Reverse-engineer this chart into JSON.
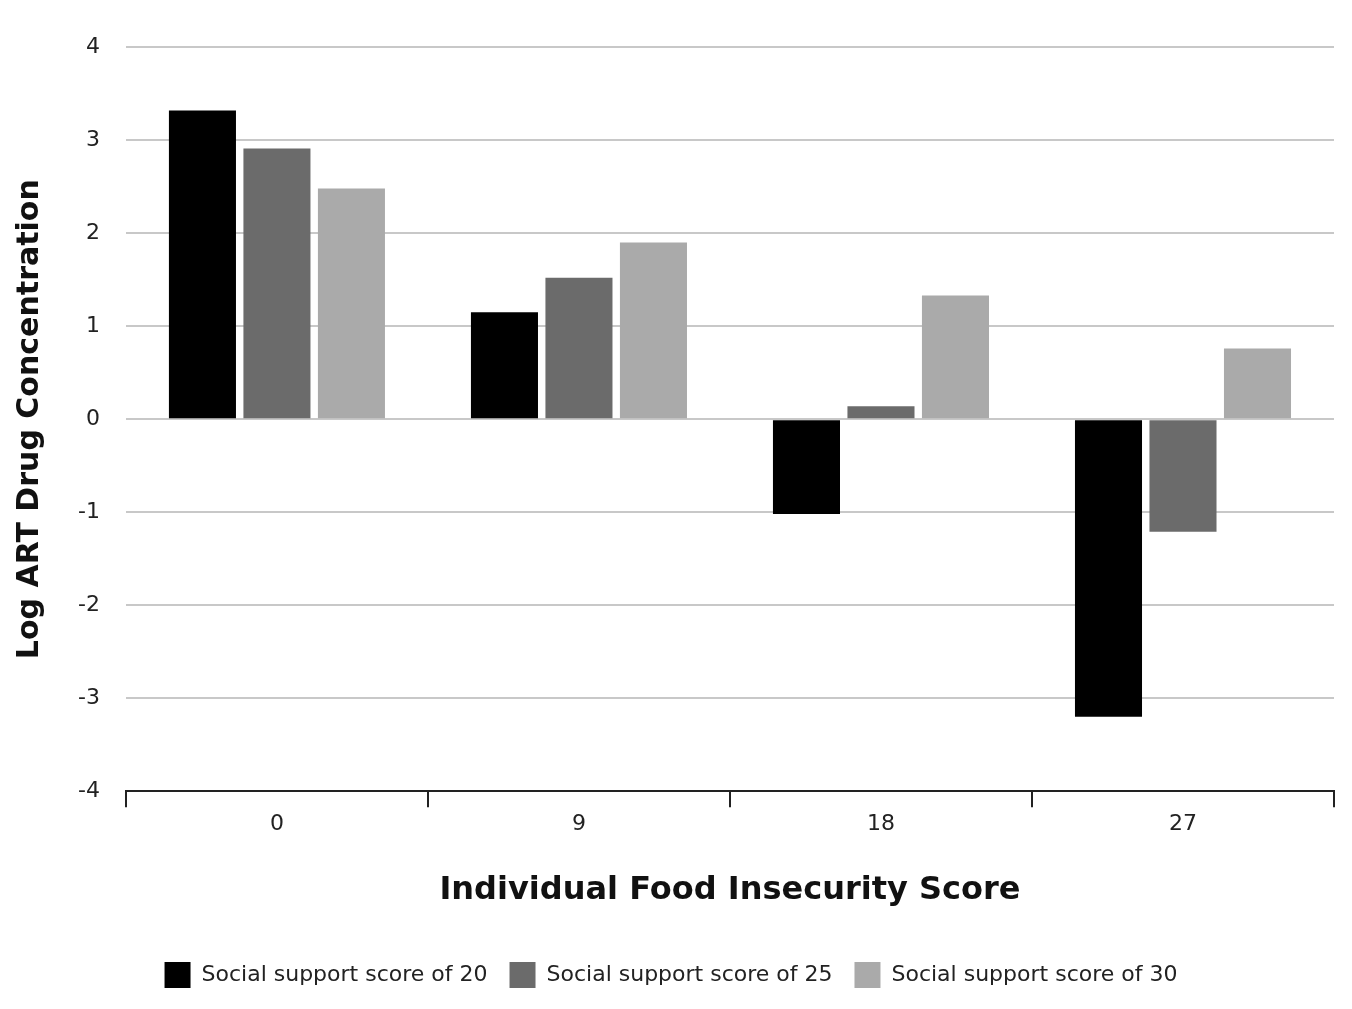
{
  "chart_data": {
    "type": "bar",
    "xlabel": "Individual Food Insecurity Score",
    "ylabel": "Log ART Drug Concentration",
    "categories": [
      "0",
      "9",
      "18",
      "27"
    ],
    "series": [
      {
        "name": "Social support score of 20",
        "color": "#000000",
        "values": [
          3.32,
          1.15,
          -1.02,
          -3.2
        ]
      },
      {
        "name": "Social support score of 25",
        "color": "#6b6b6b",
        "values": [
          2.91,
          1.52,
          0.14,
          -1.21
        ]
      },
      {
        "name": "Social support score of 30",
        "color": "#aaaaaa",
        "values": [
          2.48,
          1.9,
          1.33,
          0.76
        ]
      }
    ],
    "ylim": [
      -4,
      4
    ],
    "yticks": [
      -4,
      -3,
      -2,
      -1,
      0,
      1,
      2,
      3,
      4
    ],
    "grid": "y",
    "legend": "bottom"
  }
}
